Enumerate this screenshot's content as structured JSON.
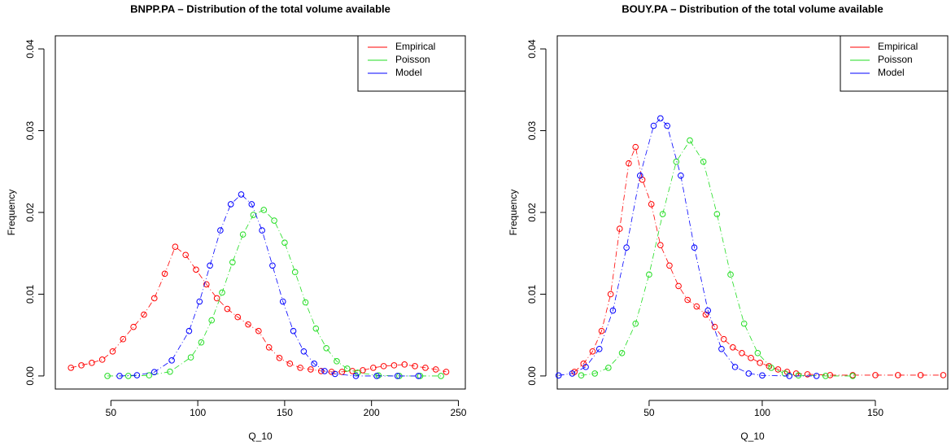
{
  "chart_data": [
    {
      "type": "scatter",
      "title": "BNPP.PA – Distribution of the total volume available",
      "x_label": "Q_10",
      "y_label": "Frequency",
      "xlim": [
        18,
        254
      ],
      "ylim": [
        -0.0016,
        0.0416
      ],
      "xticks": [
        50,
        100,
        150,
        200,
        250
      ],
      "yticks": [
        {
          "value": 0,
          "label": "0.00"
        },
        {
          "value": 0.01,
          "label": "0.01"
        },
        {
          "value": 0.02,
          "label": "0.02"
        },
        {
          "value": 0.03,
          "label": "0.03"
        },
        {
          "value": 0.04,
          "label": "0.04"
        }
      ],
      "legend": "top-right",
      "series": [
        {
          "name": "Empirical",
          "color": "#ff0000",
          "x": [
            27,
            33,
            39,
            45,
            51,
            57,
            63,
            69,
            75,
            81,
            87,
            93,
            99,
            105,
            111,
            117,
            123,
            129,
            135,
            141,
            147,
            153,
            159,
            165,
            171,
            177,
            183,
            189,
            195,
            201,
            207,
            213,
            219,
            225,
            231,
            237,
            243
          ],
          "values": [
            0.001,
            0.0013,
            0.0016,
            0.002,
            0.003,
            0.0045,
            0.006,
            0.0075,
            0.0095,
            0.0125,
            0.0158,
            0.0148,
            0.013,
            0.0112,
            0.0095,
            0.0082,
            0.0072,
            0.0063,
            0.0055,
            0.0035,
            0.0022,
            0.0015,
            0.001,
            0.0008,
            0.0006,
            0.0005,
            0.0005,
            0.0006,
            0.0007,
            0.001,
            0.0012,
            0.0013,
            0.0014,
            0.0012,
            0.001,
            0.0008,
            0.0005
          ]
        },
        {
          "name": "Poisson",
          "color": "#22dd22",
          "x": [
            48,
            60,
            72,
            84,
            96,
            102,
            108,
            114,
            120,
            126,
            132,
            138,
            144,
            150,
            156,
            162,
            168,
            174,
            180,
            186,
            192,
            204,
            216,
            228,
            240
          ],
          "values": [
            0,
            0,
            8e-05,
            0.00052,
            0.00227,
            0.0041,
            0.0068,
            0.0102,
            0.0139,
            0.0173,
            0.0197,
            0.0203,
            0.019,
            0.0163,
            0.0127,
            0.009,
            0.0058,
            0.0034,
            0.0018,
            0.0009,
            0.0004,
            6e-05,
            0,
            0,
            0
          ]
        },
        {
          "name": "Model",
          "color": "#0000ff",
          "x": [
            55,
            65,
            75,
            85,
            95,
            101,
            107,
            113,
            119,
            125,
            131,
            137,
            143,
            149,
            155,
            161,
            167,
            173,
            179,
            191,
            203,
            215,
            227
          ],
          "values": [
            0,
            9e-05,
            0.00047,
            0.0019,
            0.0055,
            0.0091,
            0.0135,
            0.0178,
            0.021,
            0.0222,
            0.021,
            0.0178,
            0.0135,
            0.0091,
            0.0055,
            0.003,
            0.0015,
            0.0006,
            0.00025,
            0,
            0,
            0,
            0
          ]
        }
      ]
    },
    {
      "type": "scatter",
      "title": "BOUY.PA – Distribution of the total volume available",
      "x_label": "Q_10",
      "y_label": "Frequency",
      "xlim": [
        9.4,
        182
      ],
      "ylim": [
        -0.0016,
        0.0416
      ],
      "xticks": [
        50,
        100,
        150
      ],
      "yticks": [
        {
          "value": 0,
          "label": "0.00"
        },
        {
          "value": 0.01,
          "label": "0.01"
        },
        {
          "value": 0.02,
          "label": "0.02"
        },
        {
          "value": 0.03,
          "label": "0.03"
        },
        {
          "value": 0.04,
          "label": "0.04"
        }
      ],
      "legend": "top-right",
      "series": [
        {
          "name": "Empirical",
          "color": "#ff0000",
          "x": [
            17,
            21,
            25,
            29,
            33,
            37,
            41,
            44,
            47,
            51,
            55,
            59,
            63,
            67,
            71,
            75,
            79,
            83,
            87,
            91,
            95,
            99,
            103,
            107,
            111,
            115,
            120,
            130,
            140,
            150,
            160,
            170,
            180
          ],
          "values": [
            0.0005,
            0.0015,
            0.003,
            0.0055,
            0.01,
            0.018,
            0.026,
            0.028,
            0.024,
            0.021,
            0.016,
            0.0135,
            0.011,
            0.0093,
            0.0085,
            0.0075,
            0.006,
            0.0045,
            0.0035,
            0.0028,
            0.0022,
            0.0016,
            0.0012,
            0.0008,
            0.0005,
            0.0003,
            0.0002,
            0.0001,
            0.0001,
            0.0001,
            0.0001,
            0.0001,
            0.0001
          ]
        },
        {
          "name": "Poisson",
          "color": "#22dd22",
          "x": [
            20,
            26,
            32,
            38,
            44,
            50,
            56,
            62,
            68,
            74,
            80,
            86,
            92,
            98,
            104,
            110,
            116,
            128,
            140
          ],
          "values": [
            7e-05,
            0.0003,
            0.001,
            0.0028,
            0.0064,
            0.0124,
            0.0198,
            0.0262,
            0.0288,
            0.0262,
            0.0198,
            0.0124,
            0.0064,
            0.0028,
            0.001,
            0.0003,
            7e-05,
            0,
            0
          ]
        },
        {
          "name": "Model",
          "color": "#0000ff",
          "x": [
            10,
            16,
            22,
            28,
            34,
            40,
            46,
            52,
            55,
            58,
            64,
            70,
            76,
            82,
            88,
            94,
            100,
            112,
            124
          ],
          "values": [
            6e-05,
            0.0003,
            0.0011,
            0.0033,
            0.008,
            0.0157,
            0.0245,
            0.0306,
            0.0315,
            0.0306,
            0.0245,
            0.0157,
            0.008,
            0.0033,
            0.0011,
            0.0003,
            6e-05,
            0,
            0
          ]
        }
      ]
    }
  ]
}
